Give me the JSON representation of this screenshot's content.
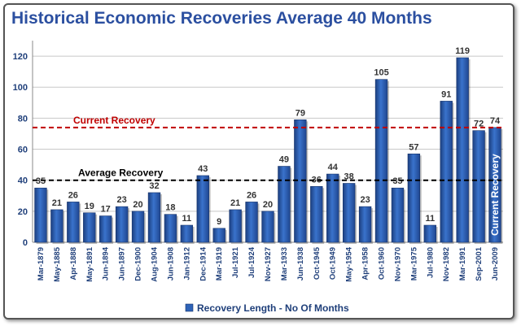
{
  "chart_data": {
    "type": "bar",
    "title": "Historical Economic Recoveries Average 40 Months",
    "xlabel": "",
    "ylabel": "",
    "ylim": [
      0,
      130
    ],
    "yticks": [
      0,
      20,
      40,
      60,
      80,
      100,
      120
    ],
    "grid": true,
    "legend_position": "bottom",
    "categories": [
      "Mar-1879",
      "May-1885",
      "Apr-1888",
      "May-1891",
      "Jun-1894",
      "Jun-1897",
      "Dec-1900",
      "Aug-1904",
      "Jun-1908",
      "Jan-1912",
      "Dec-1914",
      "Mar-1919",
      "Jul-1921",
      "Jul-1924",
      "Nov-1927",
      "Mar-1933",
      "Jun-1938",
      "Oct-1945",
      "Oct-1949",
      "May-1954",
      "Apr-1958",
      "Oct-1960",
      "Nov-1970",
      "Mar-1975",
      "Jul-1980",
      "Nov-1982",
      "Mar-1991",
      "Sep-2001",
      "Jun-2009"
    ],
    "series": [
      {
        "name": "Recovery Length - No Of Months",
        "color": "#2e63b8",
        "values": [
          35,
          21,
          26,
          19,
          17,
          23,
          20,
          32,
          18,
          11,
          43,
          9,
          21,
          26,
          20,
          49,
          79,
          36,
          44,
          38,
          23,
          105,
          35,
          57,
          11,
          91,
          119,
          72,
          74
        ],
        "data_labels": [
          "35",
          "21",
          "26",
          "19",
          "17",
          "23",
          "20",
          "32",
          "18",
          "11",
          "43",
          "9",
          "21",
          "26",
          "20",
          "49",
          "79",
          "36",
          "44",
          "38",
          "23",
          "105",
          "35",
          "57",
          "11",
          "91",
          "119",
          "72",
          "74"
        ]
      }
    ],
    "reference_lines": [
      {
        "label": "Current Recovery",
        "value": 74,
        "color": "#c00000",
        "style": "dashed"
      },
      {
        "label": "Average Recovery",
        "value": 40,
        "color": "#000000",
        "style": "dashed"
      }
    ],
    "annotations": [
      {
        "text": "Current Recovery",
        "category": "Jun-2009",
        "orientation": "vertical",
        "color": "#ffffff"
      }
    ],
    "colors": {
      "title": "#2b4fa0",
      "bar": "#2e63b8",
      "bar_dark": "#1c3f80",
      "axis_text": "#1f3f7a"
    }
  }
}
